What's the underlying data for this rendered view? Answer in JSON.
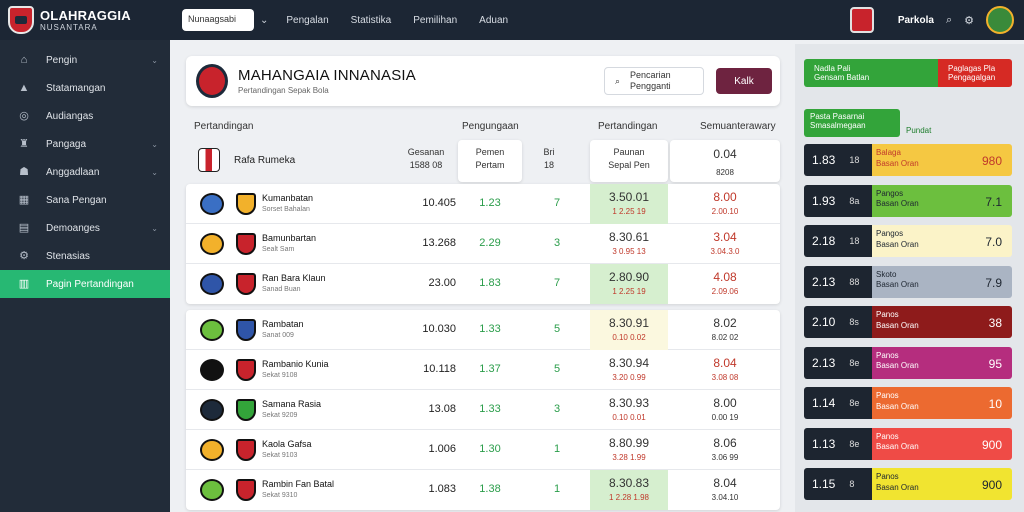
{
  "brand": {
    "title": "OLAHRAGGIA",
    "subtitle": "NUSANTARA"
  },
  "topbar": {
    "search_value": "Nunaagsabi",
    "nav": [
      "Pengalan",
      "Statistika",
      "Pemilihan",
      "Aduan"
    ],
    "right_label": "Parkola"
  },
  "sidebar": {
    "items": [
      {
        "label": "Pengin",
        "icon": "home-icon"
      },
      {
        "label": "Statamangan",
        "icon": "stats-icon"
      },
      {
        "label": "Audiangas",
        "icon": "globe-icon"
      },
      {
        "label": "Pangaga",
        "icon": "trophy-icon"
      },
      {
        "label": "Anggadlaan",
        "icon": "people-icon"
      },
      {
        "label": "Sana Pengan",
        "icon": "calendar-icon"
      },
      {
        "label": "Demoanges",
        "icon": "clipboard-icon"
      },
      {
        "label": "Stenasias",
        "icon": "settings-icon"
      },
      {
        "label": "Pagin Pertandingan",
        "icon": "chart-icon",
        "active": true
      }
    ]
  },
  "header": {
    "title": "MAHANGAIA INNANASIA",
    "subtitle": "Pertandingan Sepak Bola",
    "search_line1": "Pencarian",
    "search_line2": "Pengganti",
    "button": "Kalk"
  },
  "table": {
    "headers": [
      "Pertandingan",
      "Pengungaan",
      "Pertandingan",
      "Semuanterawary"
    ],
    "featured": {
      "team": "Rafa Rumeka",
      "c1a": "Gesanan",
      "c1b": "1588 08",
      "c2a": "Pemen",
      "c2b": "Pertam",
      "c3a": "Bri",
      "c3b": "18",
      "c4a": "Paunan",
      "c4b": "Sepal Pen",
      "c5a": "0.04",
      "c5b": "8208"
    },
    "groups": [
      [
        {
          "name": "Kumanbatan",
          "sub": "Sorset Bahalan",
          "c1": "10.405",
          "c2": "1.23",
          "c3": "7",
          "c4": "3.50.01",
          "c4s": "1 2.25 19",
          "c4h": "hl",
          "c5": "8.00",
          "c5s": "2.00.10",
          "c5c": "#c0392b"
        },
        {
          "name": "Bamunbartan",
          "sub": "Sealt Sam",
          "c1": "13.268",
          "c2": "2.29",
          "c3": "3",
          "c4": "8.30.61",
          "c4s": "3 0.95 13",
          "c4h": "",
          "c5": "3.04",
          "c5s": "3.04.3.0",
          "c5c": "#c0392b"
        },
        {
          "name": "Ran Bara Klaun",
          "sub": "Sanad Buan",
          "c1": "23.00",
          "c2": "1.83",
          "c3": "7",
          "c4": "2.80.90",
          "c4s": "1 2.25 19",
          "c4h": "hl",
          "c5": "4.08",
          "c5s": "2.09.06",
          "c5c": "#c0392b"
        }
      ],
      [
        {
          "name": "Rambatan",
          "sub": "Sanat 009",
          "c1": "10.030",
          "c2": "1.33",
          "c3": "5",
          "c4": "8.30.91",
          "c4s": "0.10 0.02",
          "c4h": "hly",
          "c5": "8.02",
          "c5s": "8.02 02",
          "c5c": "#333"
        },
        {
          "name": "Rambanio Kunia",
          "sub": "Sekat 9108",
          "c1": "10.118",
          "c2": "1.37",
          "c3": "5",
          "c4": "8.30.94",
          "c4s": "3.20 0.99",
          "c4h": "",
          "c5": "8.04",
          "c5s": "3.08 08",
          "c5c": "#c0392b"
        },
        {
          "name": "Samana Rasia",
          "sub": "Sekat 9209",
          "c1": "13.08",
          "c2": "1.33",
          "c3": "3",
          "c4": "8.30.93",
          "c4s": "0.10 0.01",
          "c4h": "",
          "c5": "8.00",
          "c5s": "0.00 19",
          "c5c": "#333"
        },
        {
          "name": "Kaola Gafsa",
          "sub": "Sekat 9103",
          "c1": "1.006",
          "c2": "1.30",
          "c3": "1",
          "c4": "8.80.99",
          "c4s": "3.28 1.99",
          "c4h": "",
          "c5": "8.06",
          "c5s": "3.06 99",
          "c5c": "#333"
        },
        {
          "name": "Rambin Fan Batal",
          "sub": "Sekat 9310",
          "c1": "1.083",
          "c2": "1.38",
          "c3": "1",
          "c4": "8.30.83",
          "c4s": "1 2.28 1.98",
          "c4h": "hl",
          "c5": "8.04",
          "c5s": "3.04.10",
          "c5c": "#333"
        }
      ]
    ]
  },
  "right": {
    "top_green_a": "Nadla Pali",
    "top_green_b": "Gensam Batlan",
    "top_red_a": "Paglagas Pla",
    "top_red_b": "Pengagalgan",
    "label_a": "Pasta Pasarnai",
    "label_b": "Smasalmegaan",
    "label_c": "Pundat",
    "odds": [
      {
        "big": "1.83",
        "small": "18",
        "l1": "Balaga",
        "l2": "Basan Oran",
        "val": "980",
        "bg": "#f5c842",
        "fg": "#c0392b"
      },
      {
        "big": "1.93",
        "small": "8a",
        "l1": "Pangos",
        "l2": "Basan Oran",
        "val": "7.1",
        "bg": "#6cbf3e",
        "fg": "#1d2530"
      },
      {
        "big": "2.18",
        "small": "18",
        "l1": "Pangos",
        "l2": "Basan Oran",
        "val": "7.0",
        "bg": "#fbf3c8",
        "fg": "#1d2530"
      },
      {
        "big": "2.13",
        "small": "88",
        "l1": "Skoto",
        "l2": "Basan Oran",
        "val": "7.9",
        "bg": "#aab4c3",
        "fg": "#1d2530"
      },
      {
        "big": "2.10",
        "small": "8s",
        "l1": "Panos",
        "l2": "Basan Oran",
        "val": "38",
        "bg": "#8e1b1b",
        "fg": "#ffffff"
      },
      {
        "big": "2.13",
        "small": "8e",
        "l1": "Panos",
        "l2": "Basan Oran",
        "val": "95",
        "bg": "#b52d7e",
        "fg": "#ffffff"
      },
      {
        "big": "1.14",
        "small": "8e",
        "l1": "Panos",
        "l2": "Basan Oran",
        "val": "10",
        "bg": "#ec6a30",
        "fg": "#ffffff"
      },
      {
        "big": "1.13",
        "small": "8e",
        "l1": "Panos",
        "l2": "Basan Oran",
        "val": "900",
        "bg": "#ef4b46",
        "fg": "#ffffff"
      },
      {
        "big": "1.15",
        "small": "8",
        "l1": "Panos",
        "l2": "Basan Oran",
        "val": "900",
        "bg": "#f1e430",
        "fg": "#1d2530"
      }
    ]
  },
  "colors": {
    "sidebar_active": "#27b873",
    "topbar": "#1c2634",
    "accent_button": "#6e2340"
  }
}
